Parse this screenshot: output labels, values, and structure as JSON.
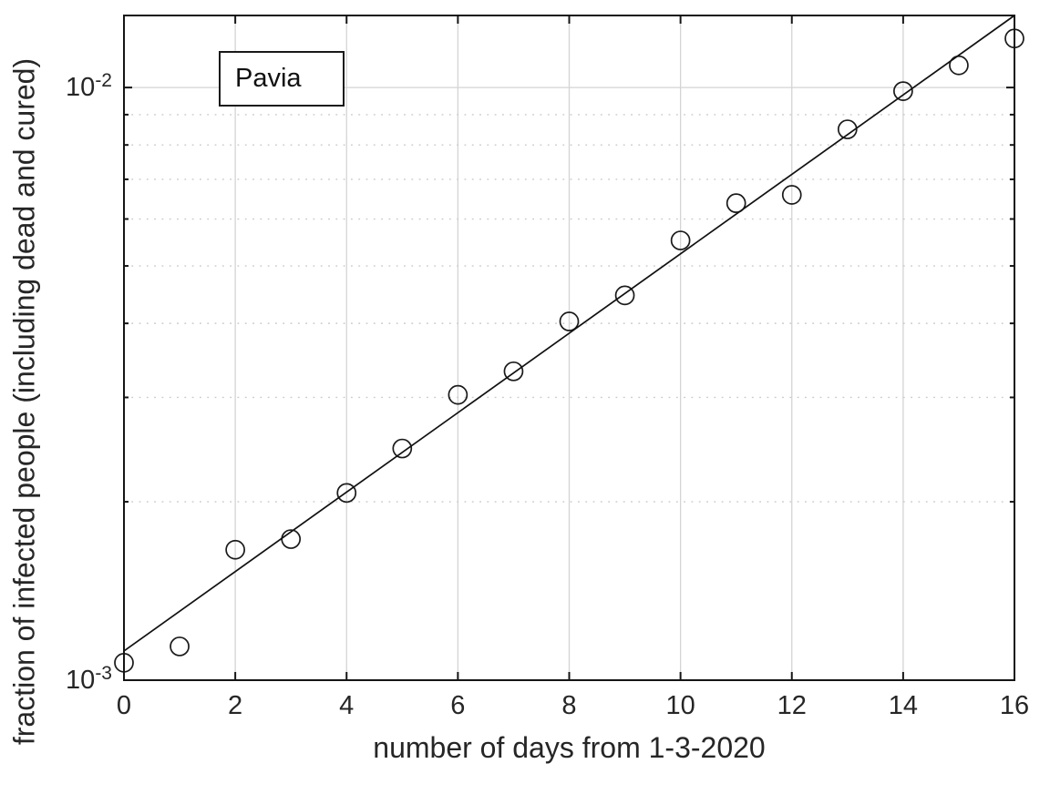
{
  "chart_data": {
    "type": "scatter",
    "title": "",
    "annotation": "Pavia",
    "xlabel": "number of days from 1-3-2020",
    "ylabel": "fraction of infected people (including dead and cured)",
    "yscale": "log",
    "xlim": [
      0,
      16
    ],
    "ylim": [
      0.001,
      0.01323
    ],
    "x_ticks": [
      0,
      2,
      4,
      6,
      8,
      10,
      12,
      14,
      16
    ],
    "y_major_ticks": [
      0.001,
      0.01
    ],
    "y_minor_ticks": [
      0.002,
      0.003,
      0.004,
      0.005,
      0.006,
      0.007,
      0.008,
      0.009
    ],
    "grid": {
      "major_grid": "solid",
      "minor_y_grid": "dotted",
      "legend": "none",
      "box": true
    },
    "series": [
      {
        "name": "observed-infected-fraction",
        "type": "scatter",
        "marker": "open-circle",
        "x": [
          0,
          1,
          2,
          3,
          4,
          5,
          6,
          7,
          8,
          9,
          10,
          11,
          12,
          13,
          14,
          15,
          16
        ],
        "y": [
          0.00107,
          0.00114,
          0.00166,
          0.00173,
          0.00207,
          0.00246,
          0.00303,
          0.00332,
          0.00403,
          0.00446,
          0.00552,
          0.00638,
          0.00659,
          0.0085,
          0.00986,
          0.0109,
          0.0121
        ]
      },
      {
        "name": "exponential-fit-line",
        "type": "line",
        "x": [
          0,
          16
        ],
        "y": [
          0.00112,
          0.01323
        ]
      }
    ],
    "colors": {
      "marker": "#1a1a1a",
      "fit_line": "#111111",
      "axis": "#151515",
      "grid_major": "#d4d4d4",
      "grid_minor": "#c9c9c9",
      "text": "#262626",
      "background": "#ffffff"
    }
  },
  "y_tick_labels": [
    {
      "base": "10",
      "exponent": "-2",
      "value": 0.01
    },
    {
      "base": "10",
      "exponent": "-3",
      "value": 0.001
    }
  ]
}
